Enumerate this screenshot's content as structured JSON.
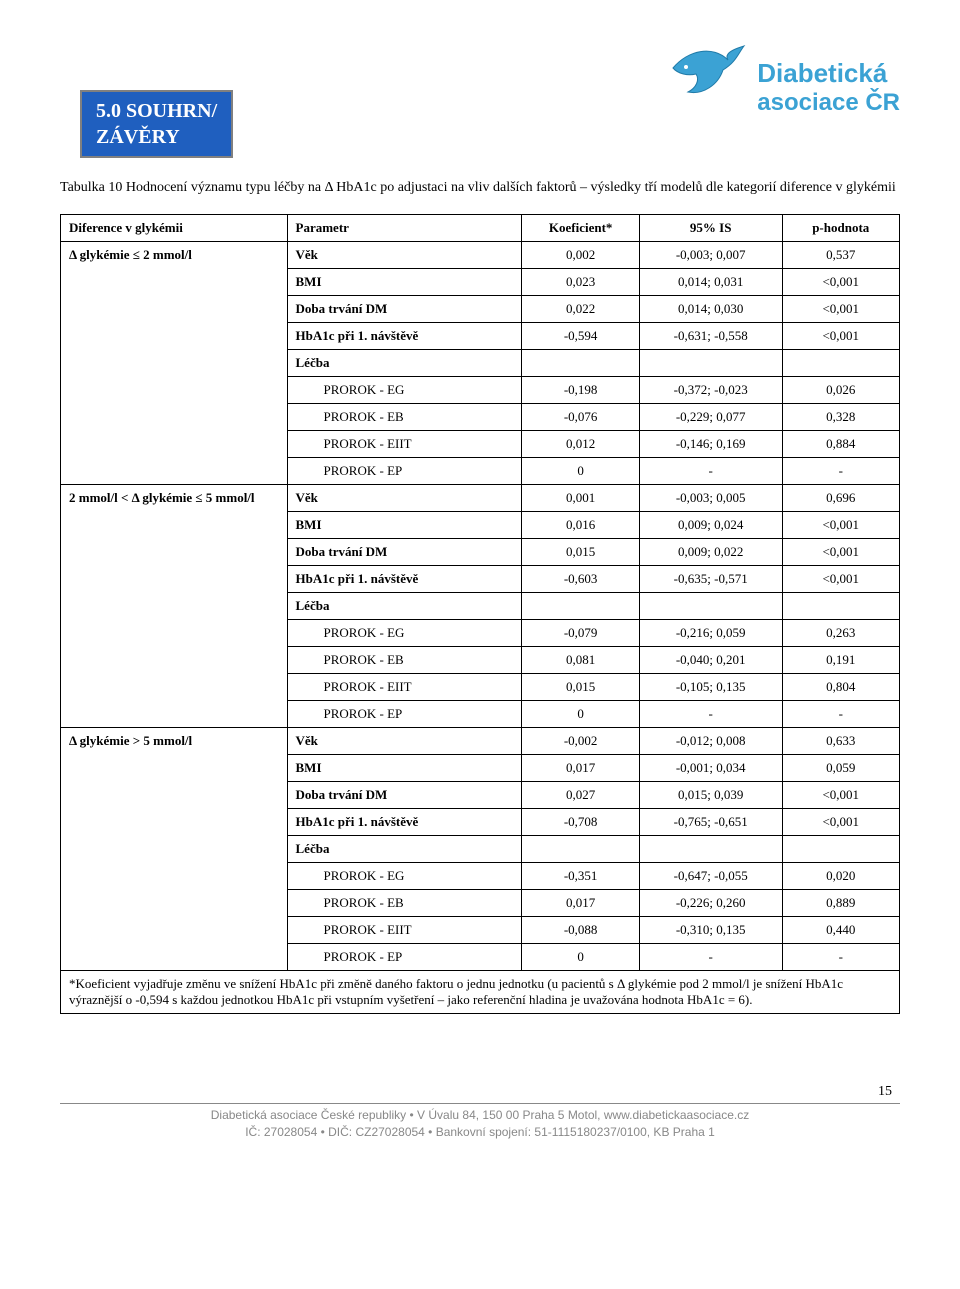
{
  "badge": {
    "line1": "5.0 SOUHRN/",
    "line2": "ZÁVĚRY"
  },
  "logo": {
    "line1": "Diabetická",
    "line2": "asociace ČR",
    "bird_fill": "#3ba2d4",
    "bird_stroke": "#1f7aa8"
  },
  "caption": "Tabulka 10 Hodnocení významu typu léčby na Δ HbA1c po adjustaci na vliv dalších faktorů – výsledky tří modelů dle kategorií diference v glykémii",
  "headers": {
    "col1": "Diference v glykémii",
    "col2": "Parametr",
    "col3": "Koeficient*",
    "col4": "95% IS",
    "col5": "p-hodnota"
  },
  "groups": [
    {
      "label": "Δ glykémie ≤ 2 mmol/l",
      "rows": [
        {
          "param": "Věk",
          "bold": true,
          "coef": "0,002",
          "ci": "-0,003; 0,007",
          "p": "0,537"
        },
        {
          "param": "BMI",
          "bold": true,
          "coef": "0,023",
          "ci": "0,014; 0,031",
          "p": "<0,001"
        },
        {
          "param": "Doba trvání DM",
          "bold": true,
          "coef": "0,022",
          "ci": "0,014; 0,030",
          "p": "<0,001"
        },
        {
          "param": "HbA1c při 1. návštěvě",
          "bold": true,
          "coef": "-0,594",
          "ci": "-0,631; -0,558",
          "p": "<0,001"
        },
        {
          "param": "Léčba",
          "bold": true,
          "coef": "",
          "ci": "",
          "p": ""
        },
        {
          "param": "PROROK - EG",
          "indent": true,
          "coef": "-0,198",
          "ci": "-0,372; -0,023",
          "p": "0,026"
        },
        {
          "param": "PROROK - EB",
          "indent": true,
          "coef": "-0,076",
          "ci": "-0,229; 0,077",
          "p": "0,328"
        },
        {
          "param": "PROROK - EIIT",
          "indent": true,
          "coef": "0,012",
          "ci": "-0,146; 0,169",
          "p": "0,884"
        },
        {
          "param": "PROROK - EP",
          "indent": true,
          "coef": "0",
          "ci": "-",
          "p": "-"
        }
      ]
    },
    {
      "label": "2 mmol/l  < Δ glykémie ≤ 5 mmol/l",
      "rows": [
        {
          "param": "Věk",
          "bold": true,
          "coef": "0,001",
          "ci": "-0,003; 0,005",
          "p": "0,696"
        },
        {
          "param": "BMI",
          "bold": true,
          "coef": "0,016",
          "ci": "0,009; 0,024",
          "p": "<0,001"
        },
        {
          "param": "Doba trvání DM",
          "bold": true,
          "coef": "0,015",
          "ci": "0,009; 0,022",
          "p": "<0,001"
        },
        {
          "param": "HbA1c při 1. návštěvě",
          "bold": true,
          "coef": "-0,603",
          "ci": "-0,635; -0,571",
          "p": "<0,001"
        },
        {
          "param": "Léčba",
          "bold": true,
          "coef": "",
          "ci": "",
          "p": ""
        },
        {
          "param": "PROROK - EG",
          "indent": true,
          "coef": "-0,079",
          "ci": "-0,216; 0,059",
          "p": "0,263"
        },
        {
          "param": "PROROK - EB",
          "indent": true,
          "coef": "0,081",
          "ci": "-0,040; 0,201",
          "p": "0,191"
        },
        {
          "param": "PROROK - EIIT",
          "indent": true,
          "coef": "0,015",
          "ci": "-0,105; 0,135",
          "p": "0,804"
        },
        {
          "param": "PROROK - EP",
          "indent": true,
          "coef": "0",
          "ci": "-",
          "p": "-"
        }
      ]
    },
    {
      "label": "Δ glykémie > 5 mmol/l",
      "rows": [
        {
          "param": "Věk",
          "bold": true,
          "coef": "-0,002",
          "ci": "-0,012; 0,008",
          "p": "0,633"
        },
        {
          "param": "BMI",
          "bold": true,
          "coef": "0,017",
          "ci": "-0,001; 0,034",
          "p": "0,059"
        },
        {
          "param": "Doba trvání DM",
          "bold": true,
          "coef": "0,027",
          "ci": "0,015; 0,039",
          "p": "<0,001"
        },
        {
          "param": "HbA1c při 1. návštěvě",
          "bold": true,
          "coef": "-0,708",
          "ci": "-0,765; -0,651",
          "p": "<0,001"
        },
        {
          "param": "Léčba",
          "bold": true,
          "coef": "",
          "ci": "",
          "p": ""
        },
        {
          "param": "PROROK - EG",
          "indent": true,
          "coef": "-0,351",
          "ci": "-0,647; -0,055",
          "p": "0,020"
        },
        {
          "param": "PROROK - EB",
          "indent": true,
          "coef": "0,017",
          "ci": "-0,226; 0,260",
          "p": "0,889"
        },
        {
          "param": "PROROK - EIIT",
          "indent": true,
          "coef": "-0,088",
          "ci": "-0,310; 0,135",
          "p": "0,440"
        },
        {
          "param": "PROROK - EP",
          "indent": true,
          "coef": "0",
          "ci": "-",
          "p": "-"
        }
      ]
    }
  ],
  "footnote": "*Koeficient vyjadřuje změnu ve snížení HbA1c při změně daného faktoru o jednu jednotku (u pacientů s Δ glykémie pod 2 mmol/l je snížení HbA1c výraznější o -0,594 s každou jednotkou HbA1c při vstupním vyšetření – jako referenční hladina je uvažována hodnota HbA1c = 6).",
  "pagenum": "15",
  "footer": {
    "line1": "Diabetická asociace České republiky • V Úvalu 84, 150 00 Praha 5 Motol, www.diabetickaasociace.cz",
    "line2": "IČ: 27028054 • DIČ: CZ27028054 • Bankovní spojení: 51-1115180237/0100, KB Praha 1"
  },
  "col_widths": {
    "c1": "27%",
    "c2": "28%",
    "c3": "14%",
    "c4": "17%",
    "c5": "14%"
  }
}
